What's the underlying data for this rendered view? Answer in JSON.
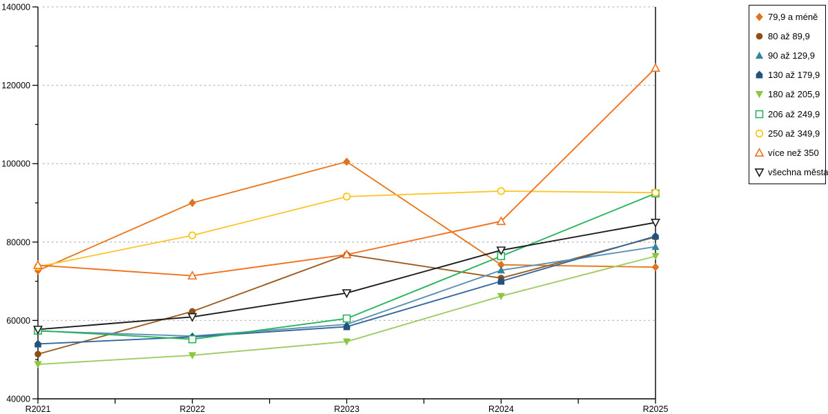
{
  "chart_data": {
    "type": "line",
    "title": "",
    "xlabel": "",
    "ylabel": "",
    "categories": [
      "R2021",
      "R2022",
      "R2023",
      "R2024",
      "R2025"
    ],
    "ylim": [
      40000,
      140000
    ],
    "ytick_step": 20000,
    "ytick_labels": [
      "40000",
      "60000",
      "80000",
      "100000",
      "120000",
      "140000"
    ],
    "grid": "horizontal-dotted",
    "grid_color": "#b8b8b8",
    "axis_color": "#000000",
    "legend_position": "top-right",
    "series": [
      {
        "name": "79,9 a méně",
        "marker": "diamond-filled",
        "color": "#E2711D",
        "line_color": "#E8791E",
        "values": [
          72700,
          90000,
          100500,
          74200,
          73600
        ]
      },
      {
        "name": "80 až 89,9",
        "marker": "circle-filled",
        "color": "#8F4E14",
        "line_color": "#9A5B1F",
        "values": [
          51400,
          62300,
          76800,
          70800,
          81300
        ]
      },
      {
        "name": "90 až 129,9",
        "marker": "triangle-up-filled",
        "color": "#31859C",
        "line_color": "#5C90B4",
        "values": [
          57300,
          56000,
          59000,
          72800,
          78800
        ]
      },
      {
        "name": "130 až 179,9",
        "marker": "pentagon-filled",
        "color": "#24527E",
        "line_color": "#33669C",
        "values": [
          54000,
          55800,
          58400,
          70000,
          81500
        ]
      },
      {
        "name": "180 až 205,9",
        "marker": "triangle-down-filled",
        "color": "#8CC63E",
        "line_color": "#9DCB64",
        "values": [
          48800,
          51100,
          54600,
          66200,
          76400
        ]
      },
      {
        "name": "206 až 249,9",
        "marker": "square-open",
        "color": "#25B25B",
        "line_color": "#27B45C",
        "values": [
          57400,
          55200,
          60500,
          76400,
          92400
        ]
      },
      {
        "name": "250 až 349,9",
        "marker": "circle-open",
        "color": "#FFC000",
        "line_color": "#FDC52E",
        "values": [
          73700,
          81700,
          91600,
          93000,
          92600
        ]
      },
      {
        "name": "více než 350",
        "marker": "triangle-up-open",
        "color": "#F2701D",
        "line_color": "#F2701D",
        "values": [
          74100,
          71400,
          76800,
          85300,
          124400
        ]
      },
      {
        "name": "všechna města",
        "marker": "triangle-down-open",
        "color": "#1A1A1A",
        "line_color": "#1A1A1A",
        "values": [
          57700,
          60900,
          67000,
          77900,
          85000
        ]
      }
    ]
  }
}
